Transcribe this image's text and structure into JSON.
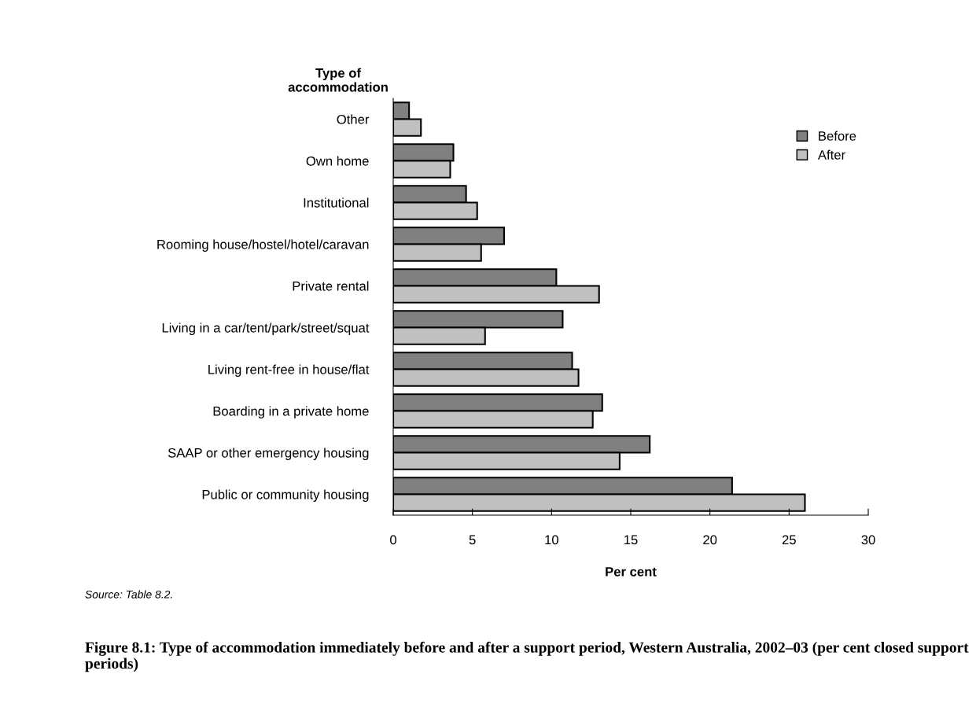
{
  "chart_data": {
    "type": "bar",
    "orientation": "horizontal",
    "title": "Figure 8.1: Type of accommodation immediately before and after a support period, Western Australia, 2002–03 (per cent closed support periods)",
    "ylabel": "Type of\naccommodation",
    "xlabel": "Per cent",
    "categories": [
      "Other",
      "Own home",
      "Institutional",
      "Rooming house/hostel/hotel/caravan",
      "Private rental",
      "Living in a car/tent/park/street/squat",
      "Living rent-free in house/flat",
      "Boarding in a private home",
      "SAAP or other emergency housing",
      "Public or community housing"
    ],
    "series": [
      {
        "name": "Before",
        "color": "#808080",
        "values": [
          1.0,
          3.8,
          4.6,
          7.0,
          10.3,
          10.7,
          11.3,
          13.2,
          16.2,
          21.4
        ]
      },
      {
        "name": "After",
        "color": "#c0c0c0",
        "values": [
          1.75,
          3.6,
          5.3,
          5.55,
          13.0,
          5.8,
          11.7,
          12.6,
          14.3,
          26.0
        ]
      }
    ],
    "xlim": [
      0,
      30
    ],
    "xticks": [
      0,
      5,
      10,
      15,
      20,
      25,
      30
    ],
    "grid": false,
    "legend": "top right",
    "annotations": [
      "Source: Table 8.2."
    ]
  }
}
